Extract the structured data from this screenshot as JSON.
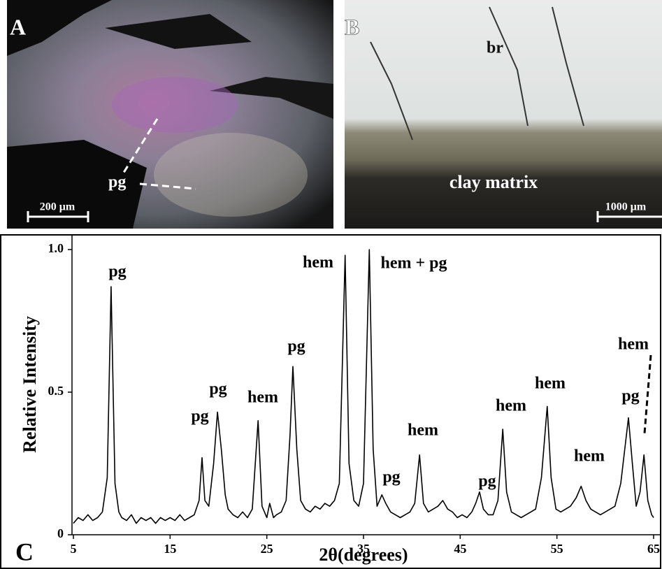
{
  "panels": [
    {
      "letter": "A",
      "labels": [
        "pg"
      ],
      "scale_bar": "200 μm"
    },
    {
      "letter": "B",
      "labels": [
        "br",
        "clay matrix"
      ],
      "scale_bar": "1000 μm"
    }
  ],
  "chart_data": {
    "type": "line",
    "panel_letter": "C",
    "xlabel": "2θ(degrees)",
    "ylabel": "Relative Intensity",
    "xlim": [
      5,
      65
    ],
    "ylim": [
      0,
      1
    ],
    "xticks": [
      5,
      15,
      25,
      35,
      45,
      55,
      65
    ],
    "yticks": [
      0,
      {
        "value": 0.5,
        "label": "0.5"
      },
      {
        "value": 1,
        "label": "1.0"
      }
    ],
    "annotations": [
      "pg",
      "pg",
      "pg",
      "hem",
      "pg",
      "hem",
      "hem + pg",
      "pg",
      "hem",
      "pg",
      "hem",
      "hem",
      "hem",
      "pg",
      "hem"
    ],
    "x": [
      5,
      5.5,
      6,
      6.5,
      7,
      7.5,
      8,
      8.5,
      8.9,
      9.3,
      9.7,
      10,
      10.5,
      11,
      11.5,
      12,
      12.5,
      13,
      13.5,
      14,
      14.5,
      15,
      15.5,
      16,
      16.5,
      17,
      17.5,
      18,
      18.3,
      18.6,
      19,
      19.5,
      19.9,
      20.3,
      20.7,
      21,
      21.5,
      22,
      22.5,
      23,
      23.5,
      24.1,
      24.5,
      25,
      25.3,
      25.7,
      26,
      26.5,
      27,
      27.4,
      27.7,
      28.1,
      28.5,
      29,
      29.5,
      30,
      30.5,
      31,
      31.5,
      32,
      32.5,
      33.1,
      33.5,
      34,
      34.5,
      35,
      35.6,
      36,
      36.4,
      36.9,
      37.3,
      37.8,
      38.3,
      38.8,
      39.3,
      39.8,
      40.3,
      40.8,
      41.2,
      41.7,
      42.2,
      42.7,
      43.2,
      43.7,
      44.2,
      44.7,
      45.2,
      45.7,
      46.2,
      46.6,
      47,
      47.4,
      47.9,
      48.4,
      48.9,
      49.4,
      49.8,
      50.3,
      50.8,
      51.3,
      51.8,
      52.3,
      52.8,
      53.4,
      54,
      54.4,
      54.9,
      55.4,
      55.9,
      56.4,
      57,
      57.5,
      58,
      58.5,
      59,
      59.5,
      60,
      60.5,
      61,
      61.6,
      62.4,
      62.8,
      63.2,
      63.6,
      64,
      64.4,
      64.8,
      65
    ],
    "series": [
      {
        "color": "#000000",
        "values": [
          0.04,
          0.06,
          0.05,
          0.07,
          0.05,
          0.06,
          0.08,
          0.2,
          0.87,
          0.18,
          0.08,
          0.06,
          0.05,
          0.07,
          0.04,
          0.06,
          0.05,
          0.06,
          0.04,
          0.06,
          0.05,
          0.06,
          0.05,
          0.07,
          0.05,
          0.06,
          0.07,
          0.12,
          0.27,
          0.12,
          0.1,
          0.25,
          0.43,
          0.3,
          0.14,
          0.09,
          0.07,
          0.06,
          0.08,
          0.06,
          0.09,
          0.4,
          0.1,
          0.06,
          0.11,
          0.06,
          0.07,
          0.08,
          0.12,
          0.35,
          0.59,
          0.3,
          0.12,
          0.09,
          0.08,
          0.1,
          0.09,
          0.11,
          0.1,
          0.12,
          0.18,
          0.98,
          0.25,
          0.12,
          0.1,
          0.18,
          1.0,
          0.3,
          0.1,
          0.14,
          0.11,
          0.08,
          0.07,
          0.06,
          0.07,
          0.08,
          0.11,
          0.28,
          0.11,
          0.08,
          0.09,
          0.1,
          0.12,
          0.09,
          0.08,
          0.06,
          0.07,
          0.06,
          0.08,
          0.11,
          0.15,
          0.09,
          0.07,
          0.07,
          0.12,
          0.37,
          0.15,
          0.08,
          0.07,
          0.06,
          0.07,
          0.08,
          0.09,
          0.2,
          0.45,
          0.2,
          0.09,
          0.08,
          0.09,
          0.1,
          0.13,
          0.17,
          0.12,
          0.09,
          0.08,
          0.07,
          0.08,
          0.09,
          0.1,
          0.18,
          0.41,
          0.25,
          0.1,
          0.15,
          0.28,
          0.12,
          0.07,
          0.06
        ]
      }
    ]
  }
}
